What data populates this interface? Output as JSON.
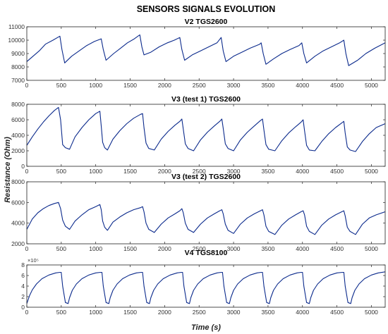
{
  "figure": {
    "title": "SENSORS SIGNALS EVOLUTION",
    "ylabel": "Resistance (Ohm)",
    "xlabel": "Time (s)"
  },
  "chart_data": [
    {
      "type": "line",
      "title": "V2   TGS2600",
      "xlim": [
        0,
        5200
      ],
      "ylim": [
        7000,
        11000
      ],
      "xticks": [
        0,
        500,
        1000,
        1500,
        2000,
        2500,
        3000,
        3500,
        4000,
        4500,
        5000
      ],
      "yticks": [
        7000,
        8000,
        9000,
        10000,
        11000
      ],
      "x_tick_labels": [
        "0",
        "500",
        "1000",
        "1500",
        "2000",
        "2500",
        "3000",
        "3500",
        "4000",
        "4500",
        "5000"
      ],
      "y_tick_labels": [
        "7000",
        "8000",
        "9000",
        "10000",
        "11000"
      ],
      "line_color": "#0b2a8c",
      "series": [
        {
          "x": [
            0,
            90,
            180,
            270,
            380,
            480,
            510,
            550,
            650,
            760,
            870,
            980,
            1080,
            1110,
            1150,
            1260,
            1360,
            1460,
            1560,
            1640,
            1670,
            1700,
            1800,
            1920,
            2040,
            2140,
            2220,
            2250,
            2290,
            2400,
            2520,
            2640,
            2760,
            2820,
            2850,
            2890,
            3000,
            3120,
            3240,
            3380,
            3400,
            3430,
            3470,
            3580,
            3700,
            3820,
            3950,
            3990,
            4020,
            4060,
            4180,
            4300,
            4420,
            4540,
            4600,
            4630,
            4670,
            4800,
            4920,
            5050,
            5200
          ],
          "y": [
            8400,
            8800,
            9200,
            9700,
            10000,
            10300,
            9300,
            8300,
            8800,
            9200,
            9600,
            9900,
            10100,
            9300,
            8500,
            9000,
            9400,
            9800,
            10100,
            10400,
            9500,
            8900,
            9100,
            9500,
            9800,
            10000,
            10200,
            9300,
            8500,
            8900,
            9200,
            9500,
            9800,
            10200,
            9200,
            8400,
            8800,
            9100,
            9400,
            9700,
            9800,
            9000,
            8200,
            8600,
            9000,
            9300,
            9600,
            9800,
            9000,
            8300,
            8800,
            9200,
            9500,
            9800,
            10000,
            9000,
            8100,
            8500,
            9000,
            9400,
            9800
          ]
        }
      ]
    },
    {
      "type": "line",
      "title": "V3 (test 1) TGS2600",
      "xlim": [
        0,
        5200
      ],
      "ylim": [
        0,
        8000
      ],
      "xticks": [
        0,
        500,
        1000,
        1500,
        2000,
        2500,
        3000,
        3500,
        4000,
        4500,
        5000
      ],
      "yticks": [
        0,
        2000,
        4000,
        6000,
        8000
      ],
      "x_tick_labels": [
        "0",
        "500",
        "1000",
        "1500",
        "2000",
        "2500",
        "3000",
        "3500",
        "4000",
        "4500",
        "5000"
      ],
      "y_tick_labels": [
        "0",
        "2000",
        "4000",
        "6000",
        "8000"
      ],
      "line_color": "#0b2a8c",
      "series": [
        {
          "x": [
            0,
            80,
            160,
            240,
            320,
            400,
            460,
            490,
            520,
            560,
            620,
            700,
            800,
            900,
            1000,
            1060,
            1080,
            1100,
            1130,
            1170,
            1250,
            1350,
            1450,
            1550,
            1650,
            1680,
            1700,
            1730,
            1770,
            1850,
            1950,
            2050,
            2150,
            2220,
            2250,
            2270,
            2300,
            2340,
            2420,
            2520,
            2620,
            2720,
            2800,
            2830,
            2850,
            2880,
            2920,
            3000,
            3100,
            3200,
            3300,
            3390,
            3420,
            3440,
            3470,
            3510,
            3600,
            3700,
            3800,
            3900,
            3980,
            4010,
            4030,
            4060,
            4100,
            4180,
            4280,
            4380,
            4480,
            4570,
            4600,
            4620,
            4650,
            4690,
            4770,
            4870,
            4970,
            5070,
            5200
          ],
          "y": [
            2700,
            3800,
            4800,
            5700,
            6500,
            7200,
            7600,
            6000,
            2800,
            2400,
            2200,
            3800,
            5000,
            6000,
            6800,
            7100,
            5200,
            3100,
            2400,
            2100,
            3500,
            4600,
            5500,
            6200,
            6700,
            6800,
            5000,
            3000,
            2300,
            2100,
            3500,
            4500,
            5300,
            5800,
            6100,
            4800,
            2900,
            2300,
            2000,
            3400,
            4400,
            5200,
            5800,
            6100,
            4900,
            2900,
            2300,
            2000,
            3400,
            4400,
            5200,
            5900,
            6100,
            4700,
            2800,
            2200,
            2000,
            3300,
            4300,
            5100,
            5700,
            6000,
            4600,
            2700,
            2100,
            2000,
            3200,
            4200,
            5000,
            5600,
            5800,
            4300,
            2500,
            2100,
            1900,
            3200,
            4200,
            5000,
            5500
          ]
        }
      ]
    },
    {
      "type": "line",
      "title": "V3 (test 2) TGS2600",
      "xlim": [
        0,
        5200
      ],
      "ylim": [
        2000,
        8000
      ],
      "xticks": [
        0,
        500,
        1000,
        1500,
        2000,
        2500,
        3000,
        3500,
        4000,
        4500,
        5000
      ],
      "yticks": [
        2000,
        4000,
        6000,
        8000
      ],
      "x_tick_labels": [
        "0",
        "500",
        "1000",
        "1500",
        "2000",
        "2500",
        "3000",
        "3500",
        "4000",
        "4500",
        "5000"
      ],
      "y_tick_labels": [
        "2000",
        "4000",
        "6000",
        "8000"
      ],
      "line_color": "#0b2a8c",
      "series": [
        {
          "x": [
            0,
            80,
            160,
            240,
            320,
            400,
            460,
            490,
            520,
            560,
            620,
            700,
            800,
            900,
            1000,
            1060,
            1080,
            1100,
            1130,
            1170,
            1250,
            1350,
            1450,
            1550,
            1650,
            1680,
            1700,
            1730,
            1770,
            1850,
            1950,
            2050,
            2150,
            2220,
            2250,
            2270,
            2300,
            2340,
            2420,
            2520,
            2620,
            2720,
            2800,
            2830,
            2850,
            2880,
            2920,
            3000,
            3100,
            3200,
            3300,
            3390,
            3420,
            3440,
            3470,
            3510,
            3600,
            3700,
            3800,
            3900,
            3980,
            4010,
            4030,
            4060,
            4100,
            4180,
            4280,
            4380,
            4480,
            4570,
            4600,
            4620,
            4650,
            4690,
            4770,
            4870,
            4970,
            5070,
            5200
          ],
          "y": [
            3400,
            4400,
            5000,
            5400,
            5700,
            5900,
            6000,
            5400,
            4300,
            3700,
            3400,
            4200,
            4800,
            5300,
            5600,
            5800,
            5300,
            4200,
            3600,
            3300,
            4100,
            4600,
            5000,
            5300,
            5500,
            5600,
            5100,
            4000,
            3400,
            3100,
            3900,
            4500,
            4900,
            5200,
            5400,
            5000,
            4000,
            3400,
            3100,
            3900,
            4500,
            4900,
            5200,
            5300,
            4900,
            3900,
            3300,
            3000,
            3900,
            4500,
            4900,
            5200,
            5300,
            4800,
            3700,
            3200,
            2900,
            3800,
            4400,
            4800,
            5100,
            5200,
            4800,
            3700,
            3200,
            2900,
            3800,
            4400,
            4800,
            5100,
            5200,
            4700,
            3600,
            3200,
            2900,
            3900,
            4500,
            4800,
            5100
          ]
        }
      ]
    },
    {
      "type": "line",
      "title": "V4 TGS8100",
      "exponent_label": "×10⁵",
      "xlim": [
        0,
        5200
      ],
      "ylim": [
        0,
        8
      ],
      "xticks": [
        0,
        500,
        1000,
        1500,
        2000,
        2500,
        3000,
        3500,
        4000,
        4500,
        5000
      ],
      "yticks": [
        0,
        2,
        4,
        6,
        8
      ],
      "x_tick_labels": [
        "0",
        "500",
        "1000",
        "1500",
        "2000",
        "2500",
        "3000",
        "3500",
        "4000",
        "4500",
        "5000"
      ],
      "y_tick_labels": [
        "0",
        "2",
        "4",
        "6",
        "8"
      ],
      "line_color": "#0b2a8c",
      "series": [
        {
          "x": [
            0,
            40,
            80,
            140,
            220,
            320,
            420,
            480,
            500,
            520,
            560,
            600,
            620,
            660,
            720,
            800,
            900,
            1000,
            1070,
            1090,
            1110,
            1150,
            1190,
            1210,
            1250,
            1310,
            1390,
            1490,
            1590,
            1660,
            1680,
            1700,
            1740,
            1780,
            1800,
            1840,
            1900,
            1980,
            2080,
            2180,
            2240,
            2260,
            2280,
            2320,
            2360,
            2380,
            2420,
            2480,
            2560,
            2660,
            2760,
            2820,
            2840,
            2860,
            2900,
            2940,
            2960,
            3000,
            3060,
            3140,
            3240,
            3340,
            3400,
            3420,
            3440,
            3480,
            3520,
            3540,
            3580,
            3640,
            3720,
            3820,
            3920,
            3980,
            4000,
            4020,
            4060,
            4100,
            4120,
            4160,
            4220,
            4300,
            4400,
            4500,
            4580,
            4600,
            4620,
            4660,
            4700,
            4720,
            4760,
            4820,
            4900,
            5000,
            5100,
            5200
          ],
          "y": [
            0.7,
            2.2,
            3.3,
            4.4,
            5.4,
            6.1,
            6.5,
            6.6,
            6.6,
            4.0,
            0.9,
            0.7,
            1.8,
            3.2,
            4.4,
            5.4,
            6.1,
            6.5,
            6.6,
            6.6,
            4.0,
            0.9,
            0.7,
            1.8,
            3.2,
            4.4,
            5.4,
            6.1,
            6.5,
            6.6,
            6.6,
            4.0,
            0.9,
            0.7,
            1.8,
            3.2,
            4.4,
            5.4,
            6.1,
            6.5,
            6.6,
            6.6,
            4.0,
            0.9,
            0.7,
            1.8,
            3.2,
            4.4,
            5.4,
            6.1,
            6.5,
            6.6,
            6.6,
            4.0,
            0.9,
            0.7,
            1.8,
            3.2,
            4.4,
            5.4,
            6.1,
            6.5,
            6.6,
            6.6,
            4.0,
            0.9,
            0.7,
            1.8,
            3.2,
            4.4,
            5.4,
            6.1,
            6.5,
            6.6,
            6.6,
            4.0,
            0.9,
            0.7,
            1.8,
            3.2,
            4.4,
            5.4,
            6.1,
            6.5,
            6.6,
            6.6,
            4.0,
            0.9,
            0.7,
            1.8,
            3.2,
            4.4,
            5.4,
            6.1,
            6.5,
            6.7
          ]
        }
      ]
    }
  ]
}
